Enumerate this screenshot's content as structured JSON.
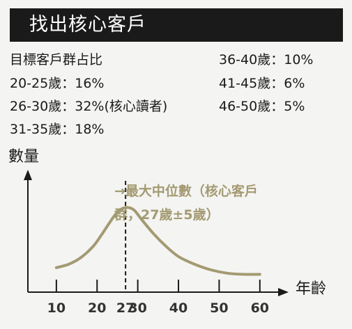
{
  "header": {
    "title": "找出核心客戶"
  },
  "stats": {
    "heading": "目標客戶群占比",
    "left": [
      {
        "label": "20-25歲",
        "value": "16%"
      },
      {
        "label": "26-30歲",
        "value": "32%(核心讀者)"
      },
      {
        "label": "31-35歲",
        "value": "18%"
      }
    ],
    "right": [
      {
        "label": "36-40歲",
        "value": "10%"
      },
      {
        "label": "41-45歲",
        "value": "6%"
      },
      {
        "label": "46-50歲",
        "value": "5%"
      }
    ],
    "sep": "："
  },
  "chart_data": {
    "type": "line",
    "ylabel": "數量",
    "xlabel": "年齡",
    "xticks": [
      10,
      20,
      27,
      30,
      40,
      50,
      60
    ],
    "xlim": [
      3,
      65
    ],
    "series": [
      {
        "x": [
          10,
          13,
          16,
          19,
          21,
          23,
          25,
          27,
          29,
          31,
          34,
          37,
          40,
          44,
          48,
          52,
          56,
          60
        ],
        "y": [
          0.22,
          0.25,
          0.31,
          0.41,
          0.51,
          0.62,
          0.72,
          0.76,
          0.74,
          0.65,
          0.52,
          0.41,
          0.32,
          0.25,
          0.2,
          0.17,
          0.16,
          0.16
        ]
      }
    ],
    "median_line": 27,
    "annotation_lines": [
      "→最大中位數（核心客戶",
      "群，27歲±5歲）"
    ],
    "colors": {
      "curve": "#a39a72",
      "annotation": "#a39a72",
      "axis": "#1a1a1a"
    }
  }
}
